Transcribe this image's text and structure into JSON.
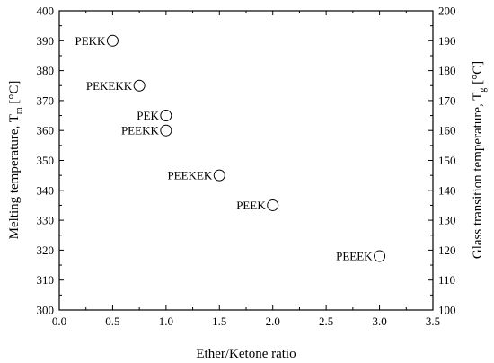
{
  "chart_data": {
    "type": "scatter",
    "x_axis": {
      "label": "Ether/Ketone ratio",
      "range": [
        0.0,
        3.5
      ],
      "ticks": [
        0.0,
        0.5,
        1.0,
        1.5,
        2.0,
        2.5,
        3.0,
        3.5
      ],
      "tick_labels": [
        "0.0",
        "0.5",
        "1.0",
        "1.5",
        "2.0",
        "2.5",
        "3.0",
        "3.5"
      ]
    },
    "y_left_axis": {
      "label_main": "Melting temperature, T",
      "label_sub": "m",
      "label_unit": " [°C]",
      "range": [
        300,
        400
      ],
      "ticks": [
        300,
        310,
        320,
        330,
        340,
        350,
        360,
        370,
        380,
        390,
        400
      ],
      "tick_labels": [
        "300",
        "310",
        "320",
        "330",
        "340",
        "350",
        "360",
        "370",
        "380",
        "390",
        "400"
      ]
    },
    "y_right_axis": {
      "label_main": "Glass transition temperature, T",
      "label_sub": "g",
      "label_unit": " [°C]",
      "range": [
        100,
        200
      ],
      "ticks": [
        100,
        110,
        120,
        130,
        140,
        150,
        160,
        170,
        180,
        190,
        200
      ],
      "tick_labels": [
        "100",
        "110",
        "120",
        "130",
        "140",
        "150",
        "160",
        "170",
        "180",
        "190",
        "200"
      ]
    },
    "points": [
      {
        "label": "PEKK",
        "x": 0.5,
        "y": 390
      },
      {
        "label": "PEKEKK",
        "x": 0.75,
        "y": 375
      },
      {
        "label": "PEK",
        "x": 1.0,
        "y": 365
      },
      {
        "label": "PEEKK",
        "x": 1.0,
        "y": 360
      },
      {
        "label": "PEEKEK",
        "x": 1.5,
        "y": 345
      },
      {
        "label": "PEEK",
        "x": 2.0,
        "y": 335
      },
      {
        "label": "PEEEK",
        "x": 3.0,
        "y": 318
      }
    ],
    "marker": "open-circle",
    "grid": false,
    "legend": "none"
  }
}
